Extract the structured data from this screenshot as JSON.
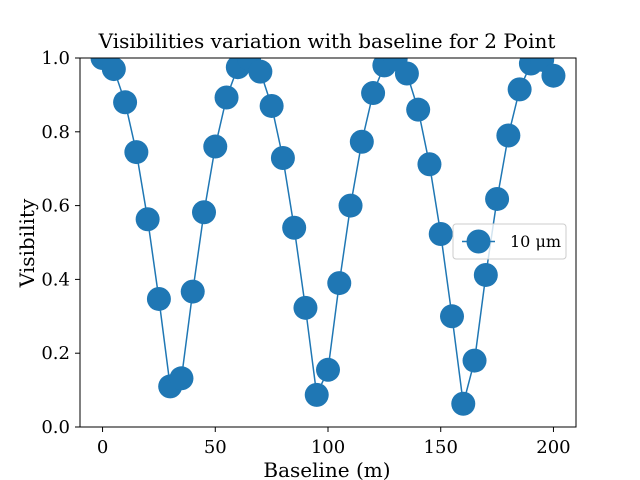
{
  "chart_data": {
    "type": "line",
    "title": "Visibilities variation with baseline for 2 Point",
    "xlabel": "Baseline (m)",
    "ylabel": "Visibility",
    "xlim": [
      -10,
      210
    ],
    "ylim": [
      0,
      1
    ],
    "xticks": [
      0,
      50,
      100,
      150,
      200
    ],
    "yticks": [
      0.0,
      0.2,
      0.4,
      0.6,
      0.8,
      1.0
    ],
    "xtick_labels": [
      "0",
      "50",
      "100",
      "150",
      "200"
    ],
    "ytick_labels": [
      "0.0",
      "0.2",
      "0.4",
      "0.6",
      "0.8",
      "1.0"
    ],
    "grid": false,
    "legend_position": "center-right",
    "series": [
      {
        "name": "10 μm",
        "color": "#1f77b4",
        "marker": "circle",
        "x": [
          0,
          5,
          10,
          15,
          20,
          25,
          30,
          35,
          40,
          45,
          50,
          55,
          60,
          65,
          70,
          75,
          80,
          85,
          90,
          95,
          100,
          105,
          110,
          115,
          120,
          125,
          130,
          135,
          140,
          145,
          150,
          155,
          160,
          165,
          170,
          175,
          180,
          185,
          190,
          195,
          200
        ],
        "y": [
          1.0,
          0.97,
          0.88,
          0.745,
          0.563,
          0.347,
          0.11,
          0.132,
          0.367,
          0.582,
          0.76,
          0.893,
          0.975,
          0.998,
          0.963,
          0.87,
          0.729,
          0.54,
          0.323,
          0.087,
          0.155,
          0.39,
          0.6,
          0.773,
          0.905,
          0.98,
          0.997,
          0.958,
          0.86,
          0.712,
          0.523,
          0.3,
          0.063,
          0.18,
          0.412,
          0.618,
          0.79,
          0.915,
          0.985,
          0.995,
          0.952
        ]
      }
    ]
  }
}
